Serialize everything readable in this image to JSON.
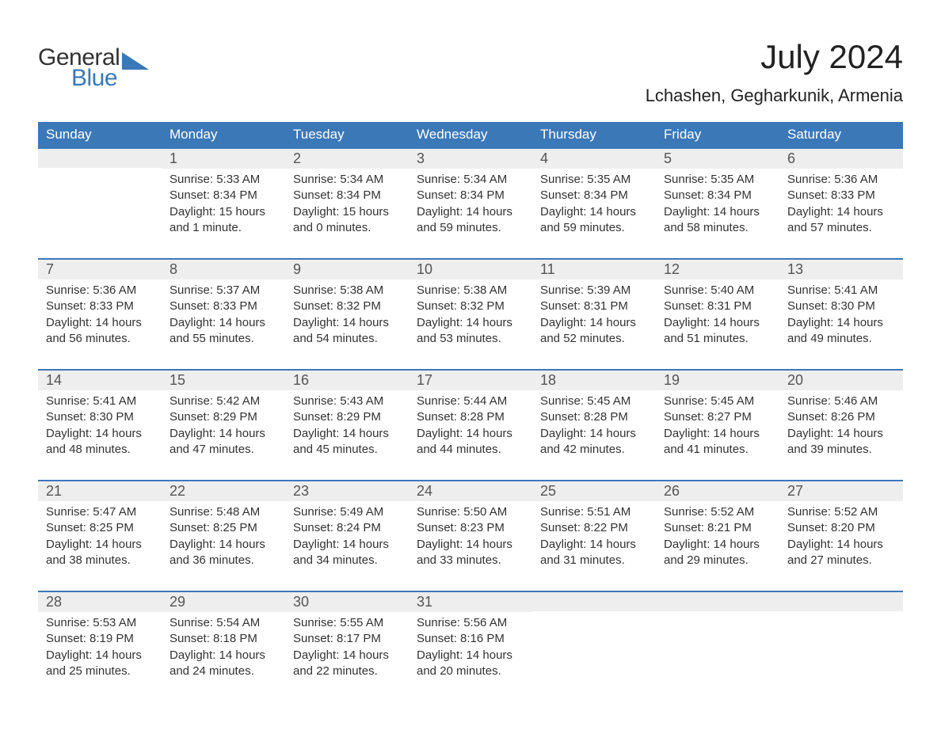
{
  "brand": {
    "word1": "General",
    "word2": "Blue"
  },
  "title": "July 2024",
  "location": "Lchashen, Gegharkunik, Armenia",
  "colors": {
    "brand_blue": "#3b78b8",
    "header_bg": "#3b78b8",
    "row_accent": "#3b78b8",
    "daynum_bg": "#eeeeee",
    "page_bg": "#ffffff",
    "text": "#333333",
    "title_text": "#222222",
    "weekday_text": "#ffffff"
  },
  "typography": {
    "title_fontsize": 42,
    "subtitle_fontsize": 22,
    "weekday_fontsize": 17,
    "daynum_fontsize": 18,
    "body_fontsize": 15,
    "font_family": "Arial"
  },
  "layout": {
    "columns": 7,
    "rows": 5,
    "first_weekday_index": 1
  },
  "weekdays": [
    "Sunday",
    "Monday",
    "Tuesday",
    "Wednesday",
    "Thursday",
    "Friday",
    "Saturday"
  ],
  "days": [
    {
      "n": 1,
      "sunrise": "5:33 AM",
      "sunset": "8:34 PM",
      "daylight": "15 hours and 1 minute."
    },
    {
      "n": 2,
      "sunrise": "5:34 AM",
      "sunset": "8:34 PM",
      "daylight": "15 hours and 0 minutes."
    },
    {
      "n": 3,
      "sunrise": "5:34 AM",
      "sunset": "8:34 PM",
      "daylight": "14 hours and 59 minutes."
    },
    {
      "n": 4,
      "sunrise": "5:35 AM",
      "sunset": "8:34 PM",
      "daylight": "14 hours and 59 minutes."
    },
    {
      "n": 5,
      "sunrise": "5:35 AM",
      "sunset": "8:34 PM",
      "daylight": "14 hours and 58 minutes."
    },
    {
      "n": 6,
      "sunrise": "5:36 AM",
      "sunset": "8:33 PM",
      "daylight": "14 hours and 57 minutes."
    },
    {
      "n": 7,
      "sunrise": "5:36 AM",
      "sunset": "8:33 PM",
      "daylight": "14 hours and 56 minutes."
    },
    {
      "n": 8,
      "sunrise": "5:37 AM",
      "sunset": "8:33 PM",
      "daylight": "14 hours and 55 minutes."
    },
    {
      "n": 9,
      "sunrise": "5:38 AM",
      "sunset": "8:32 PM",
      "daylight": "14 hours and 54 minutes."
    },
    {
      "n": 10,
      "sunrise": "5:38 AM",
      "sunset": "8:32 PM",
      "daylight": "14 hours and 53 minutes."
    },
    {
      "n": 11,
      "sunrise": "5:39 AM",
      "sunset": "8:31 PM",
      "daylight": "14 hours and 52 minutes."
    },
    {
      "n": 12,
      "sunrise": "5:40 AM",
      "sunset": "8:31 PM",
      "daylight": "14 hours and 51 minutes."
    },
    {
      "n": 13,
      "sunrise": "5:41 AM",
      "sunset": "8:30 PM",
      "daylight": "14 hours and 49 minutes."
    },
    {
      "n": 14,
      "sunrise": "5:41 AM",
      "sunset": "8:30 PM",
      "daylight": "14 hours and 48 minutes."
    },
    {
      "n": 15,
      "sunrise": "5:42 AM",
      "sunset": "8:29 PM",
      "daylight": "14 hours and 47 minutes."
    },
    {
      "n": 16,
      "sunrise": "5:43 AM",
      "sunset": "8:29 PM",
      "daylight": "14 hours and 45 minutes."
    },
    {
      "n": 17,
      "sunrise": "5:44 AM",
      "sunset": "8:28 PM",
      "daylight": "14 hours and 44 minutes."
    },
    {
      "n": 18,
      "sunrise": "5:45 AM",
      "sunset": "8:28 PM",
      "daylight": "14 hours and 42 minutes."
    },
    {
      "n": 19,
      "sunrise": "5:45 AM",
      "sunset": "8:27 PM",
      "daylight": "14 hours and 41 minutes."
    },
    {
      "n": 20,
      "sunrise": "5:46 AM",
      "sunset": "8:26 PM",
      "daylight": "14 hours and 39 minutes."
    },
    {
      "n": 21,
      "sunrise": "5:47 AM",
      "sunset": "8:25 PM",
      "daylight": "14 hours and 38 minutes."
    },
    {
      "n": 22,
      "sunrise": "5:48 AM",
      "sunset": "8:25 PM",
      "daylight": "14 hours and 36 minutes."
    },
    {
      "n": 23,
      "sunrise": "5:49 AM",
      "sunset": "8:24 PM",
      "daylight": "14 hours and 34 minutes."
    },
    {
      "n": 24,
      "sunrise": "5:50 AM",
      "sunset": "8:23 PM",
      "daylight": "14 hours and 33 minutes."
    },
    {
      "n": 25,
      "sunrise": "5:51 AM",
      "sunset": "8:22 PM",
      "daylight": "14 hours and 31 minutes."
    },
    {
      "n": 26,
      "sunrise": "5:52 AM",
      "sunset": "8:21 PM",
      "daylight": "14 hours and 29 minutes."
    },
    {
      "n": 27,
      "sunrise": "5:52 AM",
      "sunset": "8:20 PM",
      "daylight": "14 hours and 27 minutes."
    },
    {
      "n": 28,
      "sunrise": "5:53 AM",
      "sunset": "8:19 PM",
      "daylight": "14 hours and 25 minutes."
    },
    {
      "n": 29,
      "sunrise": "5:54 AM",
      "sunset": "8:18 PM",
      "daylight": "14 hours and 24 minutes."
    },
    {
      "n": 30,
      "sunrise": "5:55 AM",
      "sunset": "8:17 PM",
      "daylight": "14 hours and 22 minutes."
    },
    {
      "n": 31,
      "sunrise": "5:56 AM",
      "sunset": "8:16 PM",
      "daylight": "14 hours and 20 minutes."
    }
  ],
  "labels": {
    "sunrise_prefix": "Sunrise: ",
    "sunset_prefix": "Sunset: ",
    "daylight_prefix": "Daylight: "
  }
}
